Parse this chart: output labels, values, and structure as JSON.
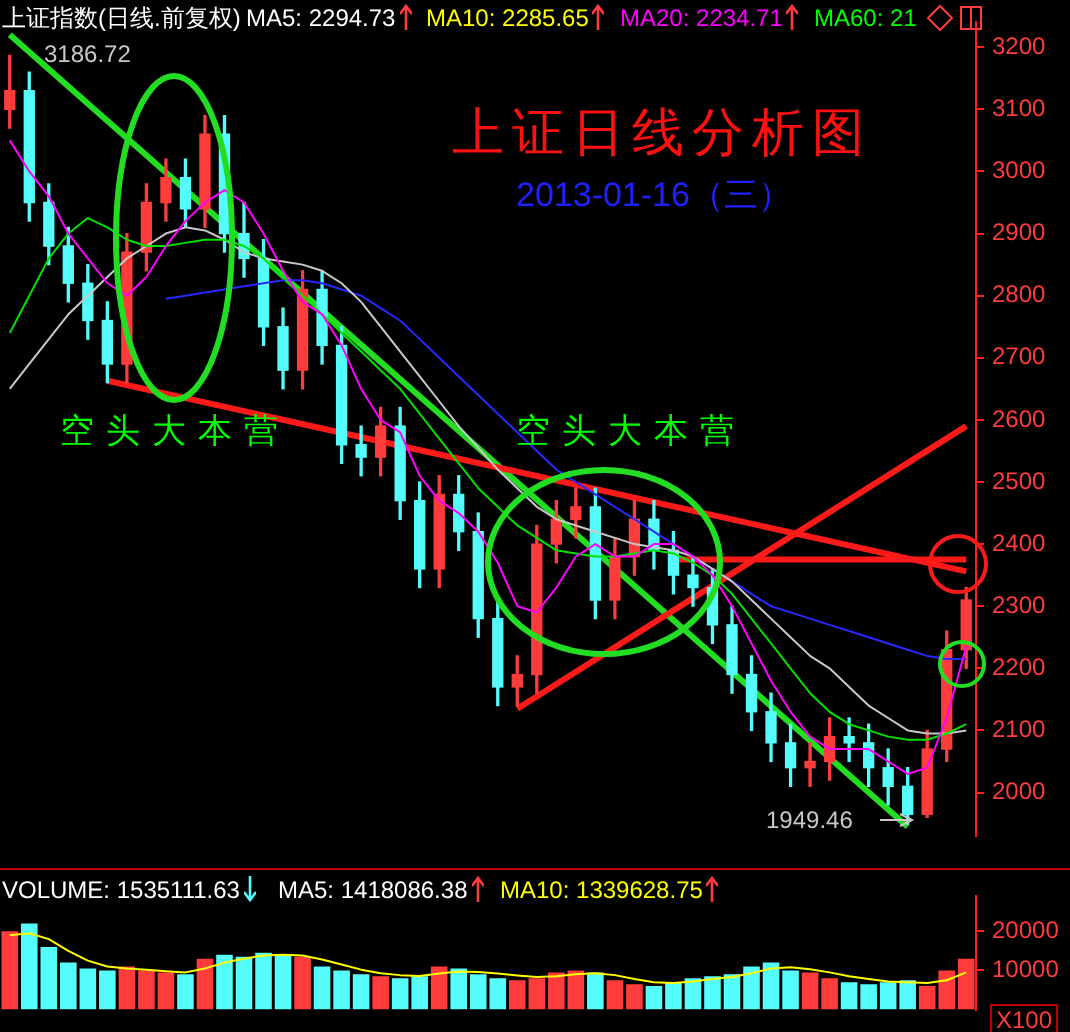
{
  "chart_data": [
    {
      "type": "candlestick",
      "title": "上证日线分析图",
      "subtitle": "2013-01-16（三）",
      "categories": [
        null,
        null,
        null,
        null,
        null,
        null,
        null,
        null,
        null,
        null,
        null,
        null,
        null,
        null,
        null,
        null,
        null,
        null,
        null,
        null,
        null,
        null,
        null,
        null,
        null,
        null,
        null,
        null,
        null,
        null,
        null,
        null,
        null,
        null,
        null,
        null,
        null,
        null,
        null,
        null,
        null,
        null,
        null,
        null,
        null,
        null,
        null,
        null,
        null,
        null
      ],
      "ohlc": [
        [
          3100,
          3186.72,
          3070,
          3130
        ],
        [
          3130,
          3160,
          2920,
          2950
        ],
        [
          2950,
          2980,
          2850,
          2880
        ],
        [
          2880,
          2910,
          2790,
          2820
        ],
        [
          2820,
          2850,
          2730,
          2760
        ],
        [
          2760,
          2790,
          2660,
          2690
        ],
        [
          2690,
          2900,
          2660,
          2870
        ],
        [
          2870,
          2980,
          2840,
          2950
        ],
        [
          2950,
          3020,
          2920,
          2990
        ],
        [
          2990,
          3020,
          2910,
          2940
        ],
        [
          2940,
          3090,
          2910,
          3060
        ],
        [
          3060,
          3090,
          2870,
          2900
        ],
        [
          2900,
          2950,
          2830,
          2860
        ],
        [
          2860,
          2890,
          2720,
          2750
        ],
        [
          2750,
          2780,
          2650,
          2680
        ],
        [
          2680,
          2840,
          2650,
          2810
        ],
        [
          2810,
          2840,
          2690,
          2720
        ],
        [
          2720,
          2750,
          2530,
          2560
        ],
        [
          2560,
          2590,
          2510,
          2540
        ],
        [
          2540,
          2620,
          2510,
          2590
        ],
        [
          2590,
          2620,
          2440,
          2470
        ],
        [
          2470,
          2500,
          2330,
          2360
        ],
        [
          2360,
          2510,
          2330,
          2480
        ],
        [
          2480,
          2510,
          2390,
          2420
        ],
        [
          2420,
          2450,
          2250,
          2280
        ],
        [
          2280,
          2310,
          2140,
          2170
        ],
        [
          2170,
          2220,
          2140,
          2190
        ],
        [
          2190,
          2430,
          2160,
          2400
        ],
        [
          2400,
          2470,
          2370,
          2440
        ],
        [
          2440,
          2490,
          2410,
          2460
        ],
        [
          2460,
          2490,
          2280,
          2310
        ],
        [
          2310,
          2410,
          2280,
          2380
        ],
        [
          2380,
          2470,
          2350,
          2440
        ],
        [
          2440,
          2470,
          2360,
          2390
        ],
        [
          2390,
          2420,
          2320,
          2350
        ],
        [
          2350,
          2380,
          2300,
          2330
        ],
        [
          2330,
          2360,
          2240,
          2270
        ],
        [
          2270,
          2300,
          2160,
          2190
        ],
        [
          2190,
          2220,
          2100,
          2130
        ],
        [
          2130,
          2160,
          2050,
          2080
        ],
        [
          2080,
          2110,
          2010,
          2040
        ],
        [
          2040,
          2080,
          2010,
          2050
        ],
        [
          2050,
          2120,
          2020,
          2090
        ],
        [
          2090,
          2120,
          2050,
          2080
        ],
        [
          2080,
          2110,
          2010,
          2040
        ],
        [
          2040,
          2070,
          1980,
          2010
        ],
        [
          2010,
          2040,
          1949.46,
          1965
        ],
        [
          1965,
          2100,
          1960,
          2070
        ],
        [
          2070,
          2260,
          2050,
          2230
        ],
        [
          2230,
          2330,
          2200,
          2310
        ]
      ],
      "colors": [
        "#ff3c3c",
        "#54fcfc",
        "#54fcfc",
        "#54fcfc",
        "#54fcfc",
        "#54fcfc",
        "#ff3c3c",
        "#ff3c3c",
        "#ff3c3c",
        "#54fcfc",
        "#ff3c3c",
        "#54fcfc",
        "#54fcfc",
        "#54fcfc",
        "#54fcfc",
        "#ff3c3c",
        "#54fcfc",
        "#54fcfc",
        "#54fcfc",
        "#ff3c3c",
        "#54fcfc",
        "#54fcfc",
        "#ff3c3c",
        "#54fcfc",
        "#54fcfc",
        "#54fcfc",
        "#ff3c3c",
        "#ff3c3c",
        "#ff3c3c",
        "#ff3c3c",
        "#54fcfc",
        "#ff3c3c",
        "#ff3c3c",
        "#54fcfc",
        "#54fcfc",
        "#54fcfc",
        "#54fcfc",
        "#54fcfc",
        "#54fcfc",
        "#54fcfc",
        "#54fcfc",
        "#ff3c3c",
        "#ff3c3c",
        "#54fcfc",
        "#54fcfc",
        "#54fcfc",
        "#54fcfc",
        "#ff3c3c",
        "#ff3c3c",
        "#ff3c3c"
      ],
      "series": [
        {
          "type": "line",
          "color": "#ff00ff",
          "values": [
            3050,
            3000,
            2960,
            2900,
            2860,
            2820,
            2800,
            2830,
            2880,
            2920,
            2950,
            2970,
            2950,
            2900,
            2840,
            2790,
            2770,
            2720,
            2650,
            2600,
            2580,
            2510,
            2470,
            2450,
            2420,
            2370,
            2300,
            2290,
            2330,
            2380,
            2400,
            2380,
            2380,
            2400,
            2400,
            2380,
            2350,
            2300,
            2240,
            2180,
            2130,
            2090,
            2070,
            2070,
            2070,
            2050,
            2030,
            2040,
            2120,
            2235
          ]
        },
        {
          "type": "line",
          "color": "#00e000",
          "values": [
            2740,
            2800,
            2860,
            2900,
            2925,
            2910,
            2890,
            2880,
            2880,
            2885,
            2890,
            2890,
            2880,
            2860,
            2830,
            2800,
            2770,
            2740,
            2710,
            2680,
            2650,
            2610,
            2570,
            2530,
            2490,
            2460,
            2430,
            2410,
            2390,
            2385,
            2380,
            2380,
            2385,
            2390,
            2385,
            2370,
            2350,
            2320,
            2280,
            2240,
            2200,
            2160,
            2130,
            2110,
            2100,
            2090,
            2085,
            2085,
            2095,
            2110
          ]
        },
        {
          "type": "line",
          "color": "#c8c8c8",
          "values": [
            2650,
            2690,
            2730,
            2770,
            2800,
            2830,
            2860,
            2880,
            2900,
            2910,
            2905,
            2890,
            2870,
            2860,
            2855,
            2850,
            2840,
            2820,
            2790,
            2750,
            2710,
            2670,
            2630,
            2590,
            2555,
            2520,
            2490,
            2460,
            2440,
            2430,
            2420,
            2410,
            2400,
            2395,
            2390,
            2380,
            2360,
            2340,
            2310,
            2280,
            2250,
            2220,
            2200,
            2170,
            2140,
            2120,
            2100,
            2095,
            2095,
            2100
          ]
        },
        {
          "type": "line",
          "color": "#2828ff",
          "values": [
            null,
            null,
            null,
            null,
            null,
            null,
            null,
            null,
            2795,
            2800,
            2805,
            2810,
            2815,
            2820,
            2825,
            2825,
            2820,
            2810,
            2800,
            2780,
            2760,
            2730,
            2700,
            2670,
            2640,
            2610,
            2580,
            2550,
            2520,
            2500,
            2480,
            2460,
            2440,
            2420,
            2400,
            2380,
            2360,
            2340,
            2320,
            2300,
            2290,
            2280,
            2270,
            2260,
            2250,
            2240,
            2230,
            2220,
            2215,
            2215
          ]
        },
        {
          "type": "line",
          "color": "#ff1a1a",
          "values": [
            null,
            null,
            null,
            null,
            null,
            null,
            null,
            null,
            null,
            null,
            null,
            null,
            null,
            null,
            null,
            null,
            null,
            null,
            null,
            null,
            null,
            null,
            null,
            null,
            null,
            null,
            null,
            null,
            null,
            null,
            null,
            null,
            null,
            null,
            2375,
            2375,
            2375,
            2375,
            2375,
            2375,
            2375,
            2375,
            2375,
            2375,
            2375,
            2375,
            2375,
            2375,
            2375,
            2375
          ]
        },
        {
          "type": "line",
          "color": "#ff1a1a",
          "values": [
            null,
            null,
            null,
            null,
            null,
            null,
            null,
            null,
            null,
            null,
            null,
            null,
            null,
            null,
            null,
            null,
            null,
            null,
            null,
            null,
            null,
            null,
            null,
            null,
            null,
            null,
            2135,
            null,
            null,
            null,
            null,
            null,
            null,
            null,
            null,
            null,
            null,
            null,
            null,
            null,
            null,
            null,
            null,
            null,
            null,
            null,
            null,
            null,
            null,
            2590
          ]
        },
        {
          "type": "line",
          "color": "#ff1a1a",
          "values": [
            null,
            null,
            null,
            null,
            null,
            2663,
            null,
            null,
            null,
            null,
            null,
            null,
            null,
            null,
            null,
            null,
            null,
            null,
            null,
            null,
            null,
            null,
            null,
            null,
            null,
            null,
            null,
            null,
            null,
            null,
            null,
            null,
            null,
            null,
            null,
            null,
            null,
            null,
            null,
            null,
            null,
            null,
            null,
            null,
            null,
            null,
            null,
            null,
            null,
            2356
          ]
        },
        {
          "type": "line",
          "color": "#22dd22",
          "values": [
            3220,
            null,
            null,
            null,
            null,
            null,
            null,
            null,
            null,
            null,
            null,
            null,
            null,
            null,
            null,
            null,
            null,
            null,
            null,
            null,
            null,
            null,
            null,
            null,
            null,
            null,
            null,
            null,
            null,
            null,
            null,
            null,
            null,
            null,
            null,
            null,
            null,
            null,
            null,
            null,
            null,
            null,
            null,
            null,
            null,
            null,
            1945,
            null,
            null,
            null
          ]
        }
      ],
      "ylim": [
        1930,
        3240
      ],
      "yticks": [
        2000,
        2100,
        2200,
        2300,
        2400,
        2500,
        2600,
        2700,
        2800,
        2900,
        3000,
        3100,
        3200
      ],
      "tick_labels": "y",
      "annotations": [
        "上证指数(日线.前复权)",
        "MA5: 2294.73",
        "MA10: 2285.65",
        "MA20: 2234.71",
        "MA60: 21",
        "空头大本营",
        "空头大本营",
        "3186.72",
        "1949.46"
      ]
    },
    {
      "type": "bar",
      "categories": [
        null,
        null,
        null,
        null,
        null,
        null,
        null,
        null,
        null,
        null,
        null,
        null,
        null,
        null,
        null,
        null,
        null,
        null,
        null,
        null,
        null,
        null,
        null,
        null,
        null,
        null,
        null,
        null,
        null,
        null,
        null,
        null,
        null,
        null,
        null,
        null,
        null,
        null,
        null,
        null,
        null,
        null,
        null,
        null,
        null,
        null,
        null,
        null,
        null,
        null
      ],
      "series": [
        {
          "type": "bar",
          "colors": [
            "#ff3c3c",
            "#54fcfc",
            "#54fcfc",
            "#54fcfc",
            "#54fcfc",
            "#54fcfc",
            "#ff3c3c",
            "#ff3c3c",
            "#ff3c3c",
            "#54fcfc",
            "#ff3c3c",
            "#54fcfc",
            "#54fcfc",
            "#54fcfc",
            "#54fcfc",
            "#ff3c3c",
            "#54fcfc",
            "#54fcfc",
            "#54fcfc",
            "#ff3c3c",
            "#54fcfc",
            "#54fcfc",
            "#ff3c3c",
            "#54fcfc",
            "#54fcfc",
            "#54fcfc",
            "#ff3c3c",
            "#ff3c3c",
            "#ff3c3c",
            "#ff3c3c",
            "#54fcfc",
            "#ff3c3c",
            "#ff3c3c",
            "#54fcfc",
            "#54fcfc",
            "#54fcfc",
            "#54fcfc",
            "#54fcfc",
            "#54fcfc",
            "#54fcfc",
            "#54fcfc",
            "#ff3c3c",
            "#ff3c3c",
            "#54fcfc",
            "#54fcfc",
            "#54fcfc",
            "#54fcfc",
            "#ff3c3c",
            "#ff3c3c",
            "#ff3c3c"
          ],
          "values": [
            20000,
            22000,
            16000,
            12000,
            10500,
            10000,
            11000,
            10000,
            9500,
            9000,
            13000,
            14000,
            13500,
            14500,
            14000,
            13500,
            11000,
            10000,
            9000,
            8500,
            8000,
            8500,
            11000,
            10500,
            9000,
            8000,
            7500,
            8000,
            9500,
            10000,
            9500,
            7500,
            6500,
            6000,
            7000,
            8000,
            8500,
            9000,
            11000,
            12000,
            10000,
            9500,
            8000,
            7000,
            6500,
            7000,
            7500,
            6000,
            10000,
            13000
          ]
        },
        {
          "type": "line",
          "color": "#ffff00",
          "values": [
            19000,
            19500,
            18000,
            15000,
            12500,
            11000,
            10500,
            10200,
            9800,
            9500,
            10500,
            12000,
            13000,
            13800,
            14000,
            13800,
            12800,
            11500,
            10200,
            9300,
            8800,
            8600,
            9200,
            9700,
            9600,
            9200,
            8700,
            8300,
            8500,
            9000,
            9300,
            8800,
            7800,
            7000,
            6800,
            7200,
            7800,
            8300,
            9300,
            10500,
            10800,
            10300,
            9500,
            8500,
            7800,
            7200,
            7000,
            6800,
            7500,
            9500
          ]
        }
      ],
      "ylim": [
        0,
        29000
      ],
      "yticks": [
        10000,
        20000
      ],
      "tick_labels": "y",
      "annotations": [
        "VOLUME: 1535111.63",
        "MA5: 1418086.38",
        "MA10: 1339628.75",
        "X100"
      ]
    }
  ]
}
